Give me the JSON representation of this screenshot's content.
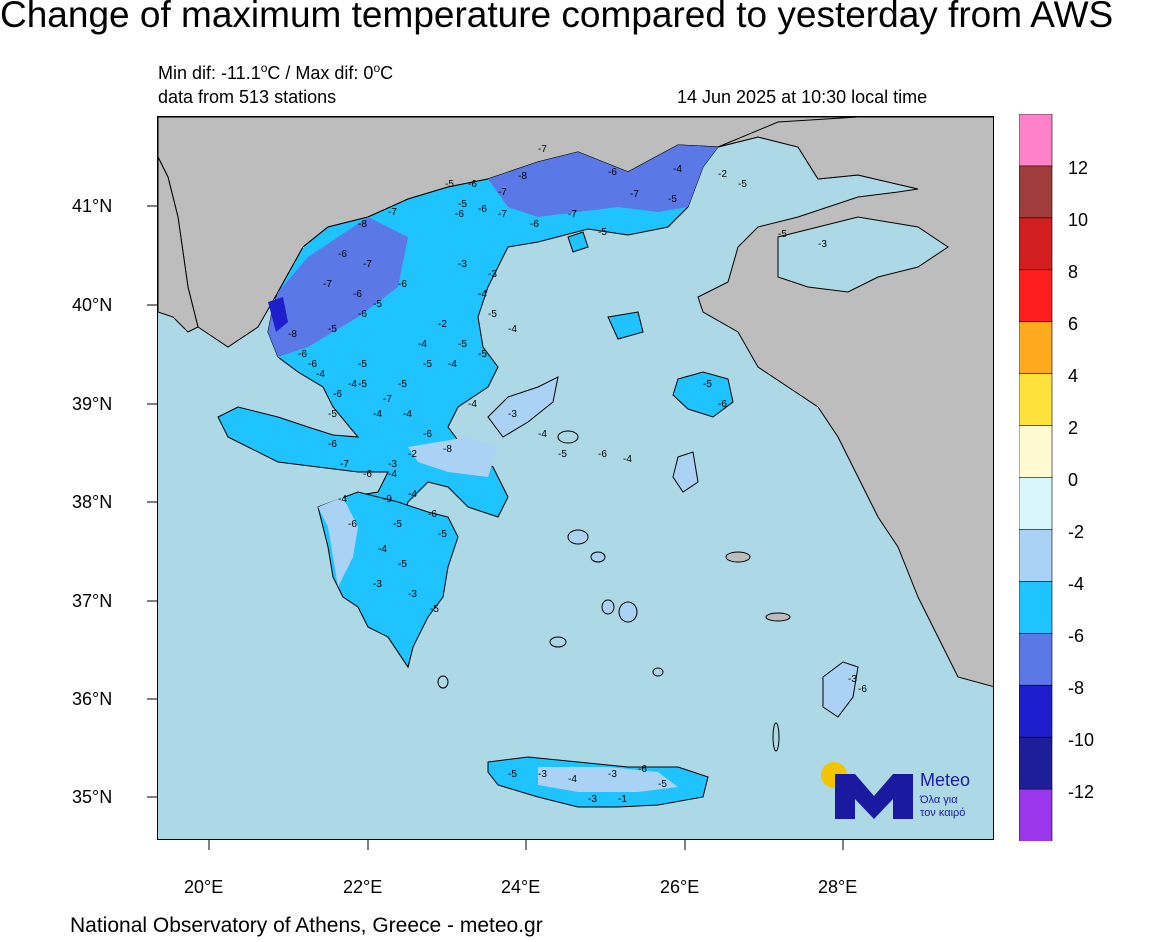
{
  "title": "Change of maximum temperature compared to yesterday from AWS",
  "stats": {
    "minmax_prefix": "Min dif: -11.1",
    "minmax_mid": "C / Max dif: 0",
    "minmax_suffix": "C",
    "degree_symbol": "o",
    "stations": "data from 513 stations",
    "timestamp": "14 Jun 2025 at 10:30 local time"
  },
  "axes": {
    "lat_labels": [
      "41°N",
      "40°N",
      "39°N",
      "38°N",
      "37°N",
      "36°N",
      "35°N"
    ],
    "lon_labels": [
      "20°E",
      "22°E",
      "24°E",
      "26°E",
      "28°E"
    ]
  },
  "colorbar": {
    "labels": [
      "12",
      "10",
      "8",
      "6",
      "4",
      "2",
      "0",
      "-2",
      "-4",
      "-6",
      "-8",
      "-10",
      "-12"
    ],
    "colors": [
      "#ff82c8",
      "#a03c3c",
      "#d21e1e",
      "#ff1e1e",
      "#ffaa1e",
      "#ffe13c",
      "#fffad2",
      "#d7f5fa",
      "#aad2f5",
      "#1ec3ff",
      "#5a78e6",
      "#1e1ecd",
      "#1e1e9b",
      "#9b37eb"
    ]
  },
  "logo": {
    "brand": "Meteo",
    "tagline_1": "Όλα για",
    "tagline_2": "τον καιρό",
    "colors": {
      "navy": "#1a1aa0",
      "sun": "#f5c400"
    }
  },
  "footer": "National Observatory of Athens, Greece - meteo.gr",
  "map_colors": {
    "sea": "#add8e6",
    "foreign_land": "#bdbdbd"
  },
  "station_values": [
    "-7",
    "-8",
    "-6",
    "-7",
    "-5",
    "-5",
    "-6",
    "-6",
    "-7",
    "-6",
    "-7",
    "-5",
    "-7",
    "-5",
    "-6",
    "-7",
    "-8",
    "-6",
    "-7",
    "-6",
    "-5",
    "-6",
    "-7",
    "-3",
    "-3",
    "-5",
    "-6",
    "-8",
    "-6",
    "-4",
    "-6",
    "-5",
    "-7",
    "-4",
    "-4",
    "-6",
    "-8",
    "-2",
    "-3",
    "-6",
    "-7",
    "-6",
    "-4",
    "-6",
    "-5",
    "-4",
    "-5",
    "-4",
    "-3",
    "-3",
    "-5",
    "-4",
    "-6",
    "-9",
    "-5",
    "-4",
    "-3",
    "-4",
    "-5",
    "-6",
    "-4",
    "-5",
    "-3",
    "-4",
    "-3",
    "-6",
    "-5",
    "-3",
    "-1",
    "-3",
    "-6",
    "-5",
    "-6",
    "-5",
    "-3",
    "-2",
    "-4",
    "-5",
    "-5",
    "-4",
    "-5",
    "-5",
    "-4",
    "-2",
    "-5",
    "-5",
    "-4",
    "-5",
    "-6",
    "-5",
    "-4",
    "-4"
  ]
}
